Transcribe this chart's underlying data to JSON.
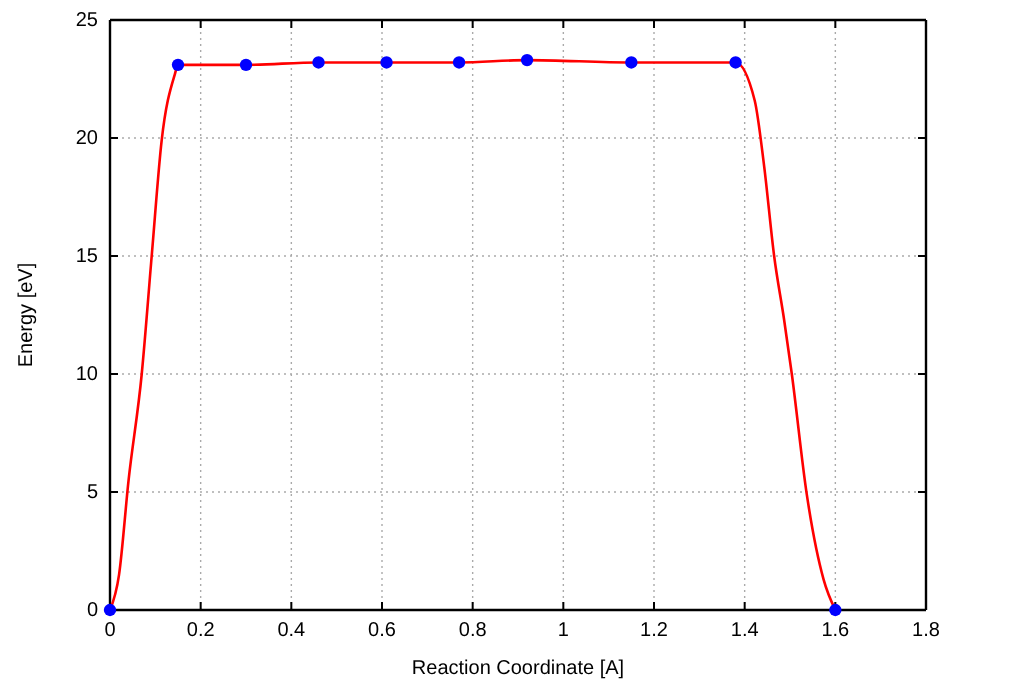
{
  "chart_data": {
    "type": "line",
    "xlabel": "Reaction Coordinate [A]",
    "ylabel": "Energy [eV]",
    "xlim": [
      0,
      1.8
    ],
    "ylim": [
      0,
      25
    ],
    "xticks": [
      0,
      0.2,
      0.4,
      0.6,
      0.8,
      1,
      1.2,
      1.4,
      1.6,
      1.8
    ],
    "yticks": [
      0,
      5,
      10,
      15,
      20,
      25
    ],
    "grid": true,
    "series": [
      {
        "color": "#ff0000",
        "marker": "none",
        "x": [
          0,
          0.02,
          0.041,
          0.07,
          0.092,
          0.114,
          0.143,
          0.15,
          0.3,
          0.46,
          0.61,
          0.77,
          0.92,
          1.15,
          1.38,
          1.422,
          1.443,
          1.465,
          1.487,
          1.504,
          1.537,
          1.574,
          1.6
        ],
        "values": [
          0,
          1.5,
          5.5,
          10,
          15,
          19.9,
          22.7,
          23.1,
          23.1,
          23.2,
          23.2,
          23.2,
          23.3,
          23.2,
          23.2,
          21.6,
          18.8,
          15,
          12.3,
          10,
          4.9,
          1.3,
          0
        ]
      },
      {
        "type": "scatter",
        "color": "#0000ff",
        "marker": "circle",
        "x": [
          0,
          0.15,
          0.3,
          0.46,
          0.61,
          0.77,
          0.92,
          1.15,
          1.38,
          1.6
        ],
        "values": [
          0,
          23.1,
          23.1,
          23.2,
          23.2,
          23.2,
          23.3,
          23.2,
          23.2,
          0
        ]
      }
    ]
  }
}
